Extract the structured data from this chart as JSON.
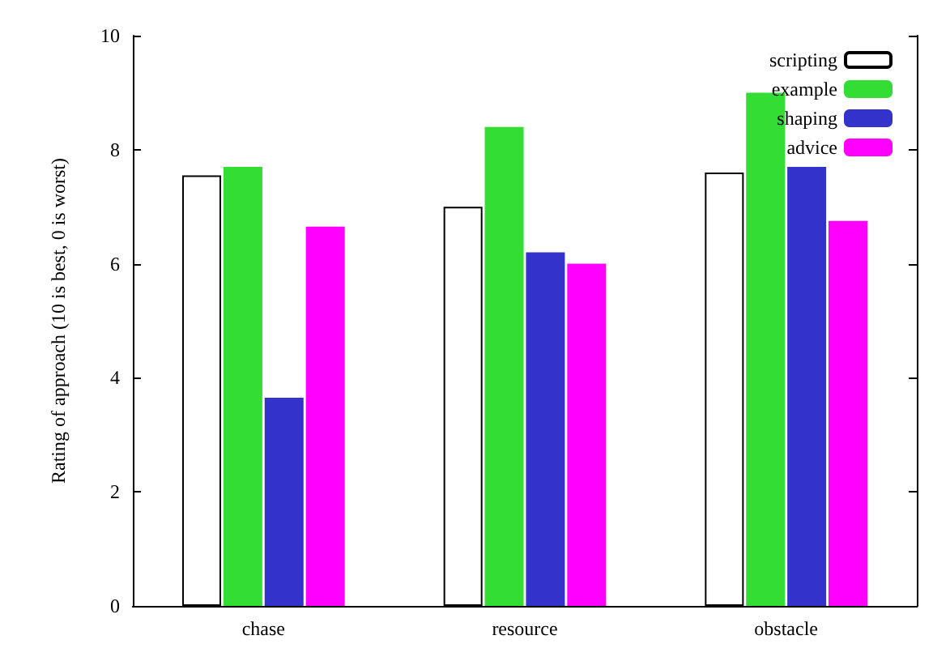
{
  "chart_data": {
    "type": "bar",
    "ylabel": "Rating of approach (10 is best, 0 is worst)",
    "categories": [
      "chase",
      "resource",
      "obstacle"
    ],
    "series": [
      {
        "name": "scripting",
        "color": "#ffffff",
        "values": [
          7.55,
          7.0,
          7.6
        ]
      },
      {
        "name": "example",
        "color": "#33dd33",
        "values": [
          7.7,
          8.4,
          9.0
        ]
      },
      {
        "name": "shaping",
        "color": "#3333cc",
        "values": [
          3.65,
          6.2,
          7.7
        ]
      },
      {
        "name": "advice",
        "color": "#ff00ff",
        "values": [
          6.65,
          6.0,
          6.75
        ]
      }
    ],
    "ylim": [
      0,
      10
    ],
    "yticks": [
      0,
      2,
      4,
      6,
      8,
      10
    ],
    "grid": false,
    "legend": "top right"
  }
}
